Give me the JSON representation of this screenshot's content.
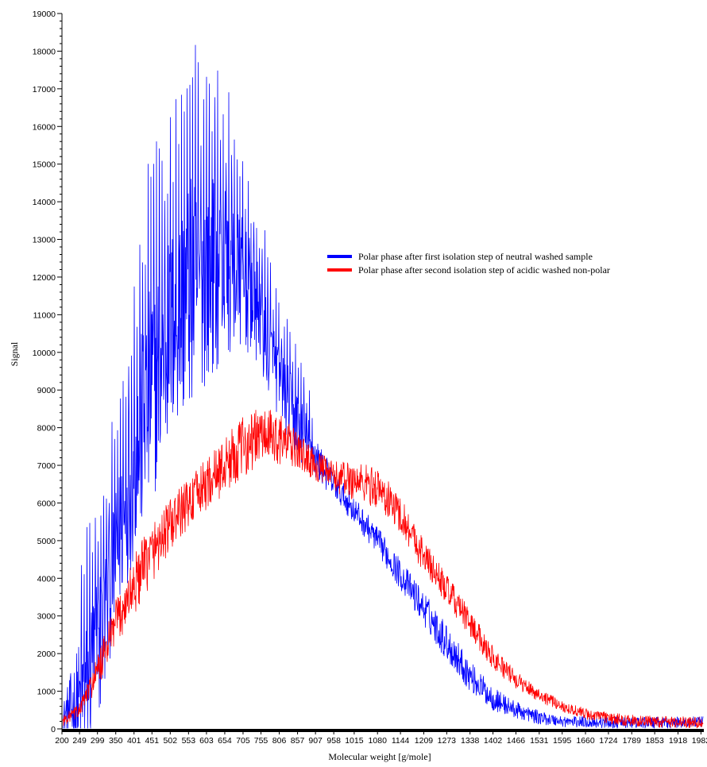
{
  "chart_data": {
    "type": "line",
    "title": "",
    "xlabel": "Molecular weight [g/mole]",
    "ylabel": "Signal",
    "xlim": [
      200,
      1990
    ],
    "ylim": [
      0,
      19000
    ],
    "x_tick_labels": [
      "200",
      "249",
      "299",
      "350",
      "401",
      "451",
      "502",
      "553",
      "603",
      "654",
      "705",
      "755",
      "806",
      "857",
      "907",
      "958",
      "1015",
      "1080",
      "1144",
      "1209",
      "1273",
      "1338",
      "1402",
      "1466",
      "1531",
      "1595",
      "1660",
      "1724",
      "1789",
      "1853",
      "1918",
      "1982"
    ],
    "y_ticks": [
      0,
      1000,
      2000,
      3000,
      4000,
      5000,
      6000,
      7000,
      8000,
      9000,
      10000,
      11000,
      12000,
      13000,
      14000,
      15000,
      16000,
      17000,
      18000,
      19000
    ],
    "grid": false,
    "legend_position": "right",
    "series": [
      {
        "name": "Polar phase after first isolation step of neutral washed sample",
        "color": "#0000ff",
        "x": [
          200,
          249,
          299,
          350,
          401,
          451,
          502,
          553,
          603,
          654,
          705,
          755,
          806,
          857,
          907,
          958,
          1015,
          1080,
          1144,
          1209,
          1273,
          1338,
          1402,
          1466,
          1531,
          1595,
          1660,
          1724,
          1789,
          1853,
          1918,
          1982
        ],
        "y": [
          300,
          700,
          2000,
          4500,
          7000,
          9000,
          10500,
          11500,
          12000,
          12200,
          11800,
          10800,
          9200,
          8100,
          7200,
          6500,
          5800,
          5000,
          4100,
          3200,
          2300,
          1400,
          800,
          500,
          300,
          200,
          180,
          170,
          160,
          160,
          170,
          180
        ],
        "peak_max": [
          900,
          4500,
          6900,
          8500,
          12500,
          15800,
          16600,
          18400,
          18300,
          17400,
          15700,
          13800,
          11500,
          10200,
          8500,
          7300,
          6600,
          5800,
          5000,
          4200,
          3400,
          2300,
          1500,
          1000,
          700,
          500,
          450,
          400,
          400,
          380,
          450,
          480
        ]
      },
      {
        "name": "Polar phase after second isolation step of acidic washed non-polar",
        "color": "#ff0000",
        "x": [
          200,
          249,
          299,
          350,
          401,
          451,
          502,
          553,
          603,
          654,
          705,
          755,
          806,
          857,
          907,
          958,
          1015,
          1080,
          1144,
          1209,
          1273,
          1338,
          1402,
          1466,
          1531,
          1595,
          1660,
          1724,
          1789,
          1853,
          1918,
          1982
        ],
        "y": [
          200,
          500,
          1500,
          2800,
          3800,
          4700,
          5400,
          6000,
          6500,
          7000,
          7500,
          7800,
          7700,
          7400,
          7000,
          6700,
          6600,
          6400,
          5700,
          4600,
          3700,
          2800,
          1900,
          1300,
          900,
          600,
          400,
          280,
          220,
          190,
          180,
          170
        ],
        "peak_max": [
          500,
          900,
          2500,
          4200,
          5600,
          6500,
          7000,
          7500,
          8000,
          8700,
          9300,
          9500,
          9200,
          8500,
          7900,
          7600,
          7800,
          7600,
          6800,
          5600,
          4600,
          3600,
          2600,
          1800,
          1300,
          900,
          650,
          500,
          400,
          350,
          320,
          300
        ]
      }
    ]
  }
}
